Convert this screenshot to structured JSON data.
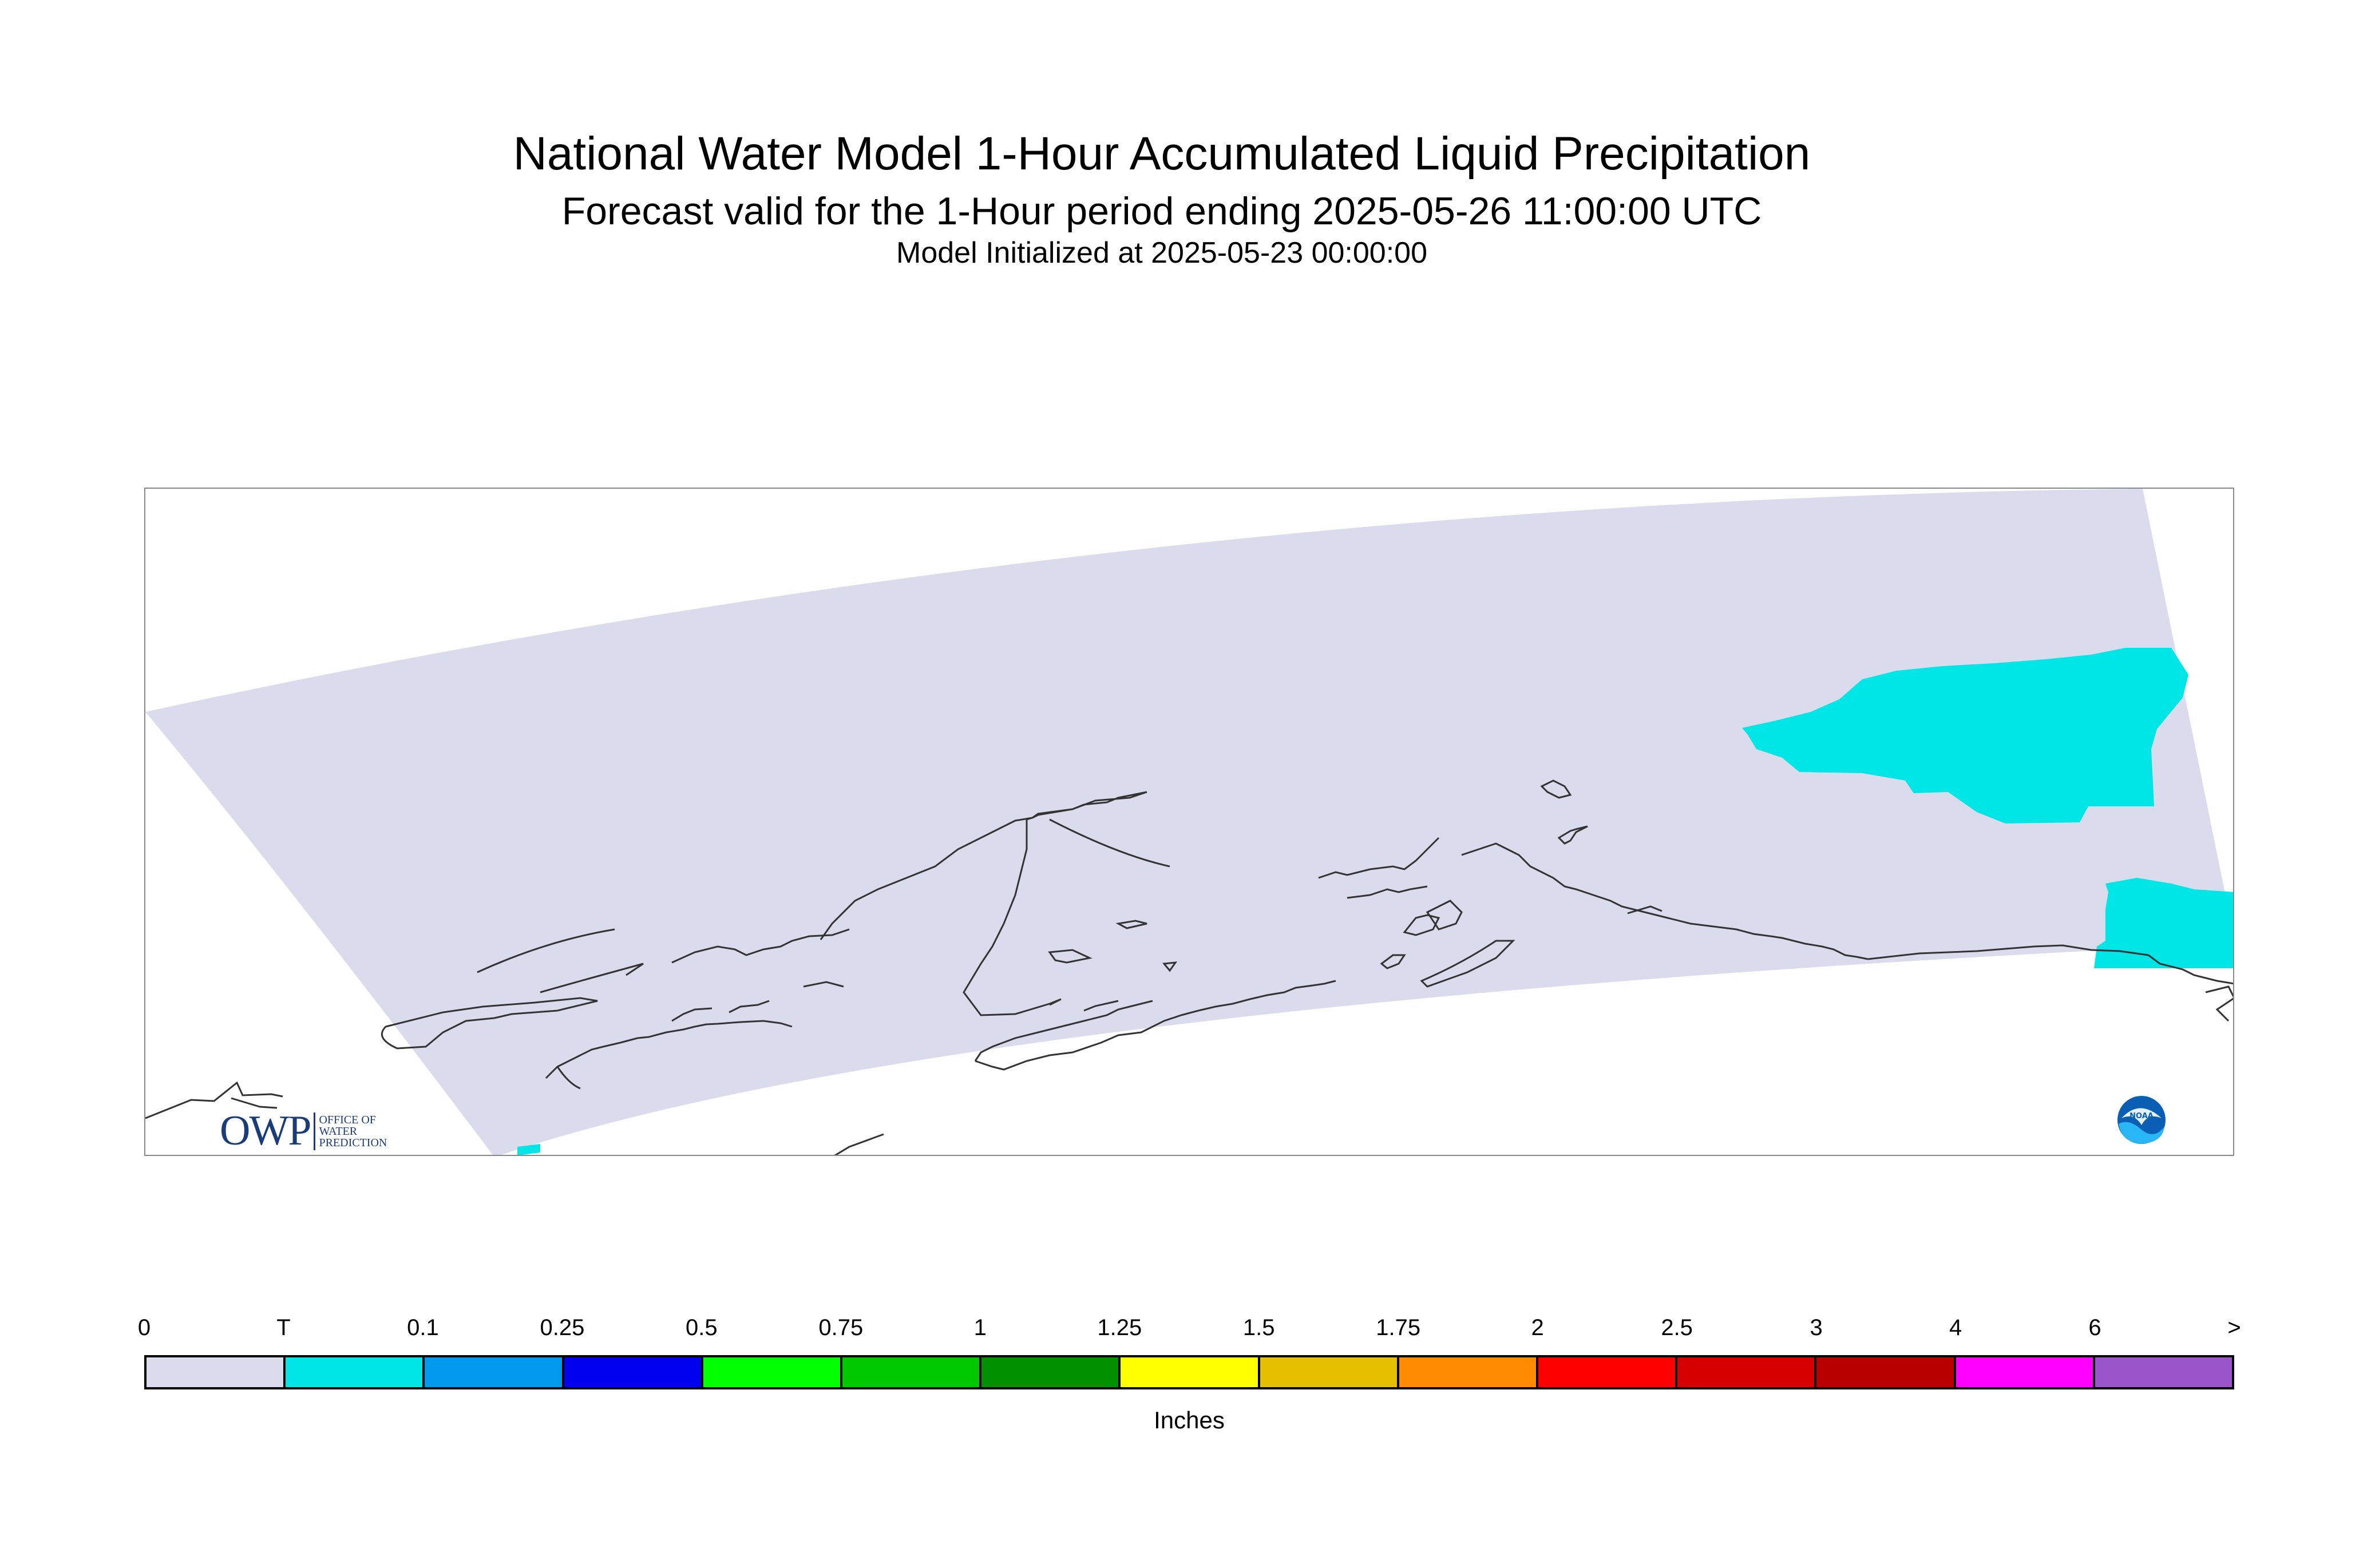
{
  "title": {
    "line1": "National Water Model 1-Hour Accumulated Liquid Precipitation",
    "line2": "Forecast valid for the 1-Hour period ending 2025-05-26 11:00:00 UTC",
    "line3": "Model Initialized at 2025-05-23 00:00:00"
  },
  "map": {
    "domain_fill_color": "#dadcee",
    "precip_color": "#00e5e5",
    "coastline_color": "#333333",
    "owp_logo_text": {
      "main": "OWP",
      "line1": "OFFICE OF",
      "line2": "WATER",
      "line3": "PREDICTION"
    },
    "noaa_logo_text": "NOAA"
  },
  "legend": {
    "ticks": [
      "0",
      "T",
      "0.1",
      "0.25",
      "0.5",
      "0.75",
      "1",
      "1.25",
      "1.5",
      "1.75",
      "2",
      "2.5",
      "3",
      "4",
      "6",
      ">"
    ],
    "colors": [
      "#dadcee",
      "#00e5e5",
      "#0099ee",
      "#0000ee",
      "#00ff00",
      "#00c800",
      "#009000",
      "#ffff00",
      "#e5c000",
      "#ff8c00",
      "#ff0000",
      "#d70000",
      "#b80000",
      "#ff00ff",
      "#9955c9"
    ],
    "units": "Inches"
  }
}
